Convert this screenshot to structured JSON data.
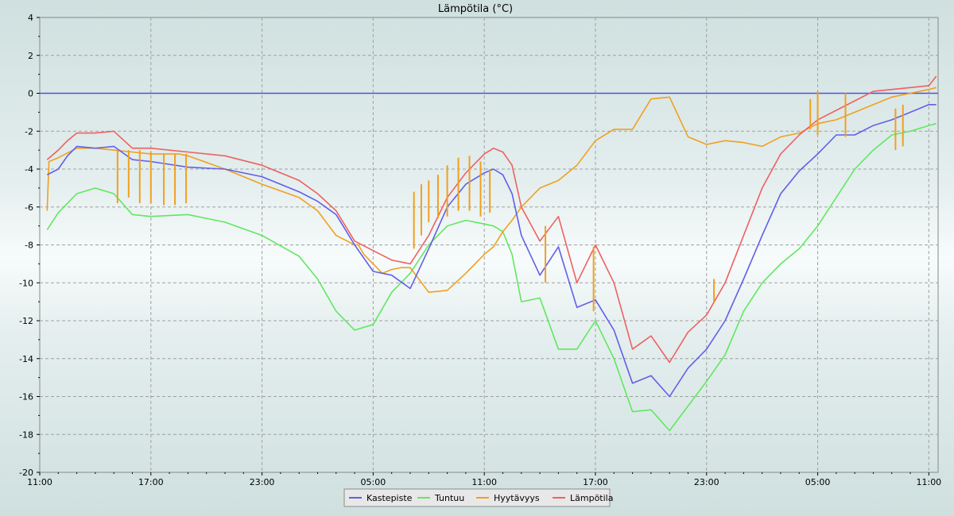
{
  "chart_data": {
    "type": "line",
    "title": "Lämpötila (°C)",
    "ylim": [
      -20,
      4
    ],
    "y_ticks": [
      "4",
      "2",
      "0",
      "-2",
      "-4",
      "-6",
      "-8",
      "-10",
      "-12",
      "-14",
      "-16",
      "-18",
      "-20"
    ],
    "x_hours_range": [
      0,
      48.5
    ],
    "x_tick_labels": [
      "11:00",
      "17:00",
      "23:00",
      "05:00",
      "11:00",
      "17:00",
      "23:00",
      "05:00",
      "11:00",
      "17:00",
      "23:00",
      "05:00",
      "11:00"
    ],
    "grid": true,
    "legend_position": "bottom-center",
    "series": [
      {
        "name": "Kastepiste",
        "color": "#6060e8",
        "x": [
          0.4,
          1,
          1.5,
          2,
          3,
          4,
          5,
          6,
          8,
          10,
          12,
          14,
          15,
          16,
          17,
          18,
          19,
          20,
          21,
          22,
          23,
          24,
          24.5,
          25,
          25.5,
          26,
          27,
          28,
          29,
          30,
          31,
          32,
          33,
          34,
          35,
          36,
          37,
          38,
          39,
          40,
          41,
          42,
          43,
          44,
          45,
          46,
          47,
          48,
          48.4
        ],
        "y": [
          -4.3,
          -4.0,
          -3.3,
          -2.8,
          -2.9,
          -2.8,
          -3.5,
          -3.6,
          -3.9,
          -4.0,
          -4.4,
          -5.2,
          -5.7,
          -6.4,
          -8.0,
          -9.4,
          -9.6,
          -10.3,
          -8.2,
          -6.0,
          -4.8,
          -4.2,
          -4.0,
          -4.3,
          -5.3,
          -7.5,
          -9.6,
          -8.1,
          -11.3,
          -10.9,
          -12.5,
          -15.3,
          -14.9,
          -16.0,
          -14.5,
          -13.5,
          -12.0,
          -9.8,
          -7.5,
          -5.3,
          -4.1,
          -3.2,
          -2.2,
          -2.2,
          -1.7,
          -1.4,
          -1.0,
          -0.6,
          -0.6
        ]
      },
      {
        "name": "Tuntuu",
        "color": "#60e860",
        "x": [
          0.4,
          1,
          1.5,
          2,
          3,
          4,
          5,
          6,
          8,
          10,
          12,
          14,
          15,
          16,
          17,
          18,
          19,
          20,
          21,
          22,
          23,
          24,
          24.5,
          25,
          25.5,
          26,
          27,
          28,
          29,
          30,
          31,
          32,
          33,
          34,
          35,
          36,
          37,
          38,
          39,
          40,
          41,
          42,
          43,
          44,
          45,
          46,
          47,
          48,
          48.4
        ],
        "y": [
          -7.2,
          -6.3,
          -5.8,
          -5.3,
          -5.0,
          -5.3,
          -6.4,
          -6.5,
          -6.4,
          -6.8,
          -7.5,
          -8.6,
          -9.8,
          -11.5,
          -12.5,
          -12.2,
          -10.5,
          -9.5,
          -8.0,
          -7.0,
          -6.7,
          -6.9,
          -7.0,
          -7.3,
          -8.5,
          -11.0,
          -10.8,
          -13.5,
          -13.5,
          -12.0,
          -14.0,
          -16.8,
          -16.7,
          -17.8,
          -16.5,
          -15.2,
          -13.8,
          -11.5,
          -10.0,
          -9.0,
          -8.2,
          -7.0,
          -5.5,
          -4.0,
          -3.0,
          -2.2,
          -2.0,
          -1.7,
          -1.6
        ]
      },
      {
        "name": "Hyytävyys",
        "color": "#f0a020",
        "x": [
          0.4,
          0.5,
          1,
          2,
          3,
          4,
          5,
          6,
          6.5,
          7,
          7.5,
          8,
          10,
          12,
          14,
          15,
          16,
          17,
          17.2,
          17.5,
          18,
          18.5,
          19,
          19.5,
          20,
          21,
          22,
          23,
          24,
          24.5,
          25,
          25.5,
          26,
          27,
          28,
          29,
          30,
          31,
          32,
          33,
          34,
          35,
          36,
          37,
          38,
          39,
          40,
          41,
          42,
          43,
          44,
          45,
          46,
          47,
          48,
          48.4
        ],
        "y": [
          -6.2,
          -3.6,
          -3.4,
          -2.9,
          -2.9,
          -3.0,
          -3.1,
          -3.2,
          -3.2,
          -3.2,
          -3.2,
          -3.3,
          -4.0,
          -4.8,
          -5.5,
          -6.2,
          -7.5,
          -8.0,
          -8.0,
          -8.5,
          -9.0,
          -9.5,
          -9.3,
          -9.2,
          -9.2,
          -10.5,
          -10.4,
          -9.5,
          -8.5,
          -8.1,
          -7.3,
          -6.7,
          -6.0,
          -5.0,
          -4.6,
          -3.8,
          -2.5,
          -1.9,
          -1.9,
          -0.3,
          -0.2,
          -2.3,
          -2.7,
          -2.5,
          -2.6,
          -2.8,
          -2.3,
          -2.1,
          -1.6,
          -1.4,
          -1.0,
          -0.6,
          -0.2,
          0.0,
          0.2,
          0.3
        ]
      },
      {
        "name": "Lämpötila",
        "color": "#f06060",
        "x": [
          0.4,
          1,
          1.5,
          2,
          3,
          4,
          5,
          6,
          8,
          10,
          12,
          14,
          15,
          16,
          17,
          18,
          19,
          20,
          21,
          22,
          23,
          24,
          24.5,
          25,
          25.5,
          26,
          27,
          28,
          29,
          30,
          31,
          32,
          33,
          34,
          35,
          36,
          37,
          38,
          39,
          40,
          41,
          42,
          43,
          44,
          45,
          46,
          47,
          48,
          48.4
        ],
        "y": [
          -3.5,
          -3.0,
          -2.5,
          -2.1,
          -2.1,
          -2.0,
          -2.9,
          -2.9,
          -3.1,
          -3.3,
          -3.8,
          -4.6,
          -5.3,
          -6.2,
          -7.8,
          -8.3,
          -8.8,
          -9.0,
          -7.5,
          -5.5,
          -4.2,
          -3.2,
          -2.9,
          -3.1,
          -3.8,
          -6.0,
          -7.8,
          -6.5,
          -10.0,
          -8.0,
          -10.0,
          -13.5,
          -12.8,
          -14.2,
          -12.6,
          -11.7,
          -10.0,
          -7.5,
          -5.0,
          -3.2,
          -2.2,
          -1.4,
          -0.9,
          -0.4,
          0.1,
          0.2,
          0.3,
          0.4,
          0.9
        ]
      }
    ],
    "frost_spikes": [
      {
        "x": 4.2,
        "y1": -3.0,
        "y2": -5.8
      },
      {
        "x": 4.8,
        "y1": -3.0,
        "y2": -5.5
      },
      {
        "x": 5.4,
        "y1": -3.0,
        "y2": -5.8
      },
      {
        "x": 6.0,
        "y1": -3.1,
        "y2": -5.8
      },
      {
        "x": 6.7,
        "y1": -3.2,
        "y2": -5.9
      },
      {
        "x": 7.3,
        "y1": -3.2,
        "y2": -5.9
      },
      {
        "x": 7.9,
        "y1": -3.2,
        "y2": -5.8
      },
      {
        "x": 20.2,
        "y1": -5.2,
        "y2": -8.2
      },
      {
        "x": 20.6,
        "y1": -4.8,
        "y2": -7.5
      },
      {
        "x": 21.0,
        "y1": -4.6,
        "y2": -6.8
      },
      {
        "x": 21.5,
        "y1": -4.3,
        "y2": -6.6
      },
      {
        "x": 22.0,
        "y1": -3.8,
        "y2": -6.5
      },
      {
        "x": 22.6,
        "y1": -3.4,
        "y2": -6.2
      },
      {
        "x": 23.2,
        "y1": -3.3,
        "y2": -6.2
      },
      {
        "x": 23.8,
        "y1": -3.6,
        "y2": -6.5
      },
      {
        "x": 24.3,
        "y1": -4.0,
        "y2": -6.3
      },
      {
        "x": 27.3,
        "y1": -7.0,
        "y2": -10.0
      },
      {
        "x": 29.9,
        "y1": -8.1,
        "y2": -11.5
      },
      {
        "x": 36.4,
        "y1": -9.8,
        "y2": -11.0
      },
      {
        "x": 41.6,
        "y1": -1.9,
        "y2": -0.3
      },
      {
        "x": 42.0,
        "y1": -2.2,
        "y2": 0.1
      },
      {
        "x": 43.5,
        "y1": -2.3,
        "y2": 0.0
      },
      {
        "x": 46.2,
        "y1": -3.0,
        "y2": -0.8
      },
      {
        "x": 46.6,
        "y1": -2.8,
        "y2": -0.6
      }
    ]
  }
}
